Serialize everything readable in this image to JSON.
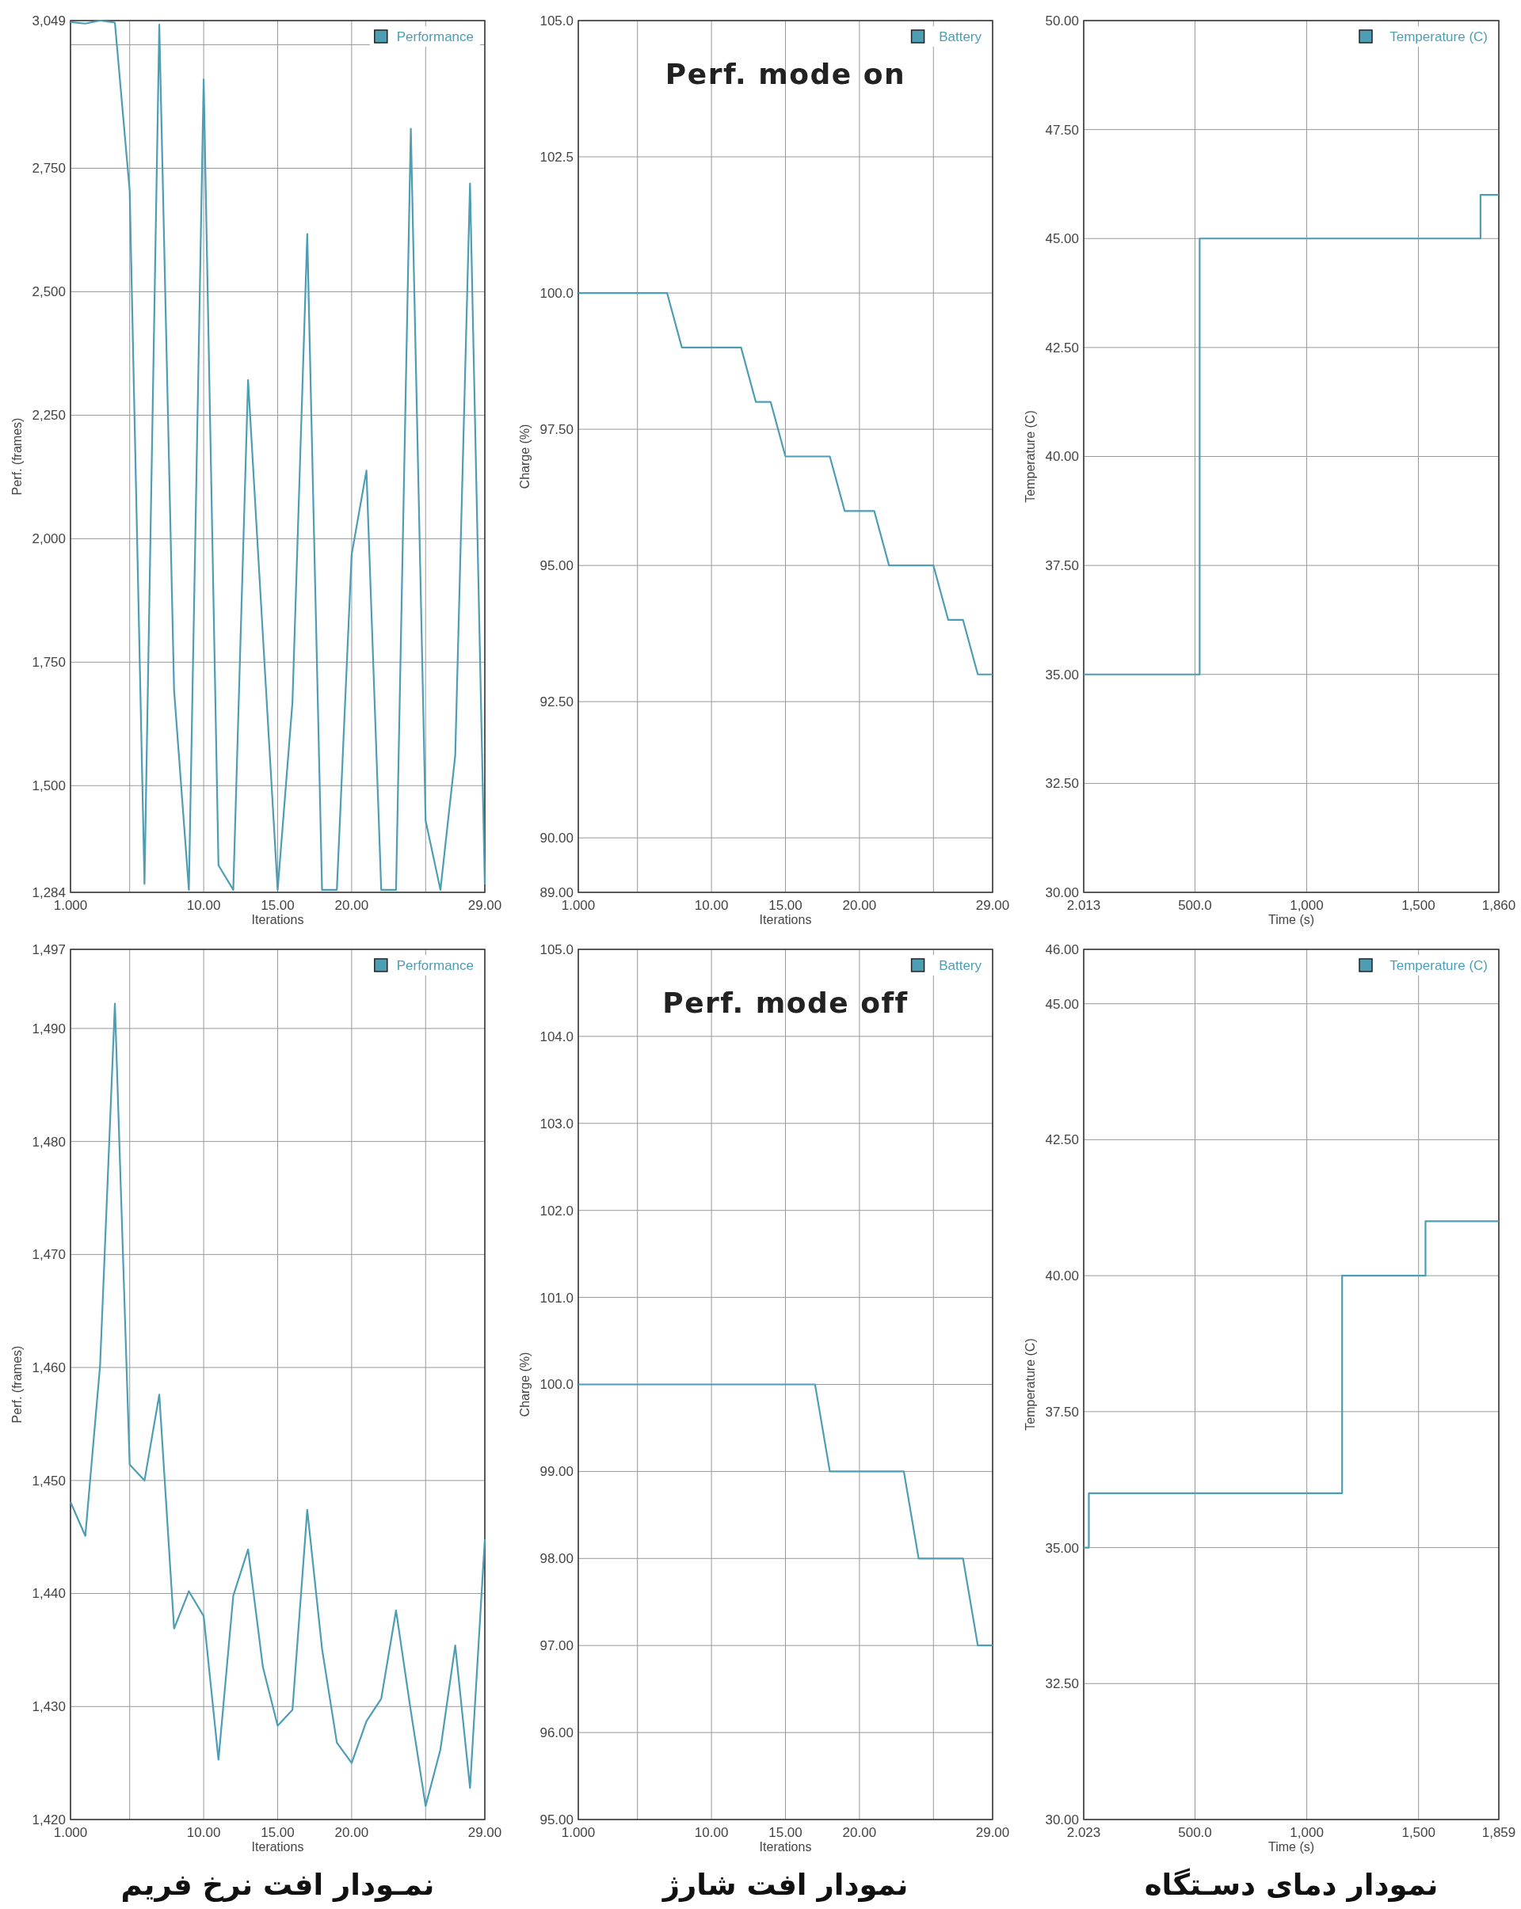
{
  "chart_data": [
    {
      "type": "line",
      "xlabel": "Iterations",
      "ylabel": "Perf. (frames)",
      "x": [
        1,
        2,
        3,
        4,
        5,
        6,
        7,
        8,
        9,
        10,
        11,
        12,
        13,
        14,
        15,
        16,
        17,
        18,
        19,
        20,
        21,
        22,
        23,
        24,
        25,
        26,
        27,
        28,
        29
      ],
      "series": [
        {
          "name": "Performance",
          "color": "#4d9db5",
          "values": [
            3046,
            3043,
            3049,
            3045,
            2704,
            1301,
            3041,
            1693,
            1289,
            2930,
            1339,
            1289,
            2321,
            1805,
            1289,
            1669,
            2617,
            1289,
            1289,
            1968,
            2138,
            1289,
            1289,
            2830,
            1429,
            1289,
            1561,
            2719,
            1300
          ]
        }
      ],
      "xlim": [
        1,
        29
      ],
      "xticks": [
        {
          "value": 1,
          "label": "1.000"
        },
        {
          "value": 5,
          "label": null
        },
        {
          "value": 10,
          "label": "10.00"
        },
        {
          "value": 15,
          "label": "15.00"
        },
        {
          "value": 20,
          "label": "20.00"
        },
        {
          "value": 25,
          "label": null
        },
        {
          "value": 29,
          "label": "29.00"
        }
      ],
      "ylim": [
        1284,
        3049
      ],
      "yticks": [
        {
          "value": 1284,
          "label": "1,284"
        },
        {
          "value": 1500,
          "label": "1,500"
        },
        {
          "value": 1750,
          "label": "1,750"
        },
        {
          "value": 2000,
          "label": "2,000"
        },
        {
          "value": 2250,
          "label": "2,250"
        },
        {
          "value": 2500,
          "label": "2,500"
        },
        {
          "value": 2750,
          "label": "2,750"
        },
        {
          "value": 3000,
          "label": null
        },
        {
          "value": 3049,
          "label": "3,049"
        }
      ],
      "grid": true,
      "legend": "top right"
    },
    {
      "type": "line",
      "title": "Perf. mode on",
      "xlabel": "Iterations",
      "ylabel": "Charge (%)",
      "x": [
        1,
        2,
        3,
        4,
        5,
        6,
        7,
        8,
        9,
        10,
        11,
        12,
        13,
        14,
        15,
        16,
        17,
        18,
        19,
        20,
        21,
        22,
        23,
        24,
        25,
        26,
        27,
        28,
        29
      ],
      "series": [
        {
          "name": "Battery",
          "color": "#4d9db5",
          "values": [
            100,
            100,
            100,
            100,
            100,
            100,
            100,
            99,
            99,
            99,
            99,
            99,
            98,
            98,
            97,
            97,
            97,
            97,
            96,
            96,
            96,
            95,
            95,
            95,
            95,
            94,
            94,
            93,
            93
          ]
        }
      ],
      "xlim": [
        1,
        29
      ],
      "xticks": [
        {
          "value": 1,
          "label": "1.000"
        },
        {
          "value": 5,
          "label": null
        },
        {
          "value": 10,
          "label": "10.00"
        },
        {
          "value": 15,
          "label": "15.00"
        },
        {
          "value": 20,
          "label": "20.00"
        },
        {
          "value": 25,
          "label": null
        },
        {
          "value": 29,
          "label": "29.00"
        }
      ],
      "ylim": [
        89,
        105
      ],
      "yticks": [
        {
          "value": 89,
          "label": "89.00"
        },
        {
          "value": 90,
          "label": "90.00"
        },
        {
          "value": 92.5,
          "label": "92.50"
        },
        {
          "value": 95,
          "label": "95.00"
        },
        {
          "value": 97.5,
          "label": "97.50"
        },
        {
          "value": 100,
          "label": "100.0"
        },
        {
          "value": 102.5,
          "label": "102.5"
        },
        {
          "value": 105,
          "label": "105.0"
        }
      ],
      "grid": true,
      "legend": "top right"
    },
    {
      "type": "step",
      "xlabel": "Time (s)",
      "ylabel": "Temperature (C)",
      "x": [
        2.013,
        521,
        1778,
        1860
      ],
      "series": [
        {
          "name": "Temperature (C)",
          "color": "#4d9db5",
          "values": [
            35,
            45,
            46,
            46
          ]
        }
      ],
      "xlim": [
        2.013,
        1860
      ],
      "xticks": [
        {
          "value": 2.013,
          "label": "2.013"
        },
        {
          "value": 500,
          "label": "500.0"
        },
        {
          "value": 1000,
          "label": "1,000"
        },
        {
          "value": 1500,
          "label": "1,500"
        },
        {
          "value": 1860,
          "label": "1,860"
        }
      ],
      "ylim": [
        30,
        50
      ],
      "yticks": [
        {
          "value": 30,
          "label": "30.00"
        },
        {
          "value": 32.5,
          "label": "32.50"
        },
        {
          "value": 35,
          "label": "35.00"
        },
        {
          "value": 37.5,
          "label": "37.50"
        },
        {
          "value": 40,
          "label": "40.00"
        },
        {
          "value": 42.5,
          "label": "42.50"
        },
        {
          "value": 45,
          "label": "45.00"
        },
        {
          "value": 47.5,
          "label": "47.50"
        },
        {
          "value": 50,
          "label": "50.00"
        }
      ],
      "grid": true,
      "legend": "top right"
    },
    {
      "type": "line",
      "xlabel": "Iterations",
      "ylabel": "Perf. (frames)",
      "annotations": [
        "نمـودار افت نرخ فریم"
      ],
      "x": [
        1,
        2,
        3,
        4,
        5,
        6,
        7,
        8,
        9,
        10,
        11,
        12,
        13,
        14,
        15,
        16,
        17,
        18,
        19,
        20,
        21,
        22,
        23,
        24,
        25,
        26,
        27,
        28,
        29
      ],
      "series": [
        {
          "name": "Performance",
          "color": "#4d9db5",
          "values": [
            1448.1,
            1445.1,
            1460.2,
            1492.2,
            1451.4,
            1450.0,
            1457.6,
            1436.9,
            1440.2,
            1438.0,
            1425.3,
            1439.8,
            1443.9,
            1433.5,
            1428.3,
            1429.7,
            1447.4,
            1435.1,
            1426.8,
            1425.0,
            1428.7,
            1430.7,
            1438.5,
            1429.6,
            1421.2,
            1426.2,
            1435.4,
            1422.8,
            1444.8
          ]
        }
      ],
      "xlim": [
        1,
        29
      ],
      "xticks": [
        {
          "value": 1,
          "label": "1.000"
        },
        {
          "value": 5,
          "label": null
        },
        {
          "value": 10,
          "label": "10.00"
        },
        {
          "value": 15,
          "label": "15.00"
        },
        {
          "value": 20,
          "label": "20.00"
        },
        {
          "value": 25,
          "label": null
        },
        {
          "value": 29,
          "label": "29.00"
        }
      ],
      "ylim": [
        1420,
        1497
      ],
      "yticks": [
        {
          "value": 1420,
          "label": "1,420"
        },
        {
          "value": 1430,
          "label": "1,430"
        },
        {
          "value": 1440,
          "label": "1,440"
        },
        {
          "value": 1450,
          "label": "1,450"
        },
        {
          "value": 1460,
          "label": "1,460"
        },
        {
          "value": 1470,
          "label": "1,470"
        },
        {
          "value": 1480,
          "label": "1,480"
        },
        {
          "value": 1490,
          "label": "1,490"
        },
        {
          "value": 1497,
          "label": "1,497"
        }
      ],
      "grid": true,
      "legend": "top right"
    },
    {
      "type": "line",
      "title": "Perf. mode off",
      "xlabel": "Iterations",
      "ylabel": "Charge (%)",
      "annotations": [
        "نمودار افت  شارژ"
      ],
      "x": [
        1,
        2,
        3,
        4,
        5,
        6,
        7,
        8,
        9,
        10,
        11,
        12,
        13,
        14,
        15,
        16,
        17,
        18,
        19,
        20,
        21,
        22,
        23,
        24,
        25,
        26,
        27,
        28,
        29
      ],
      "series": [
        {
          "name": "Battery",
          "color": "#4d9db5",
          "values": [
            100,
            100,
            100,
            100,
            100,
            100,
            100,
            100,
            100,
            100,
            100,
            100,
            100,
            100,
            100,
            100,
            100,
            99,
            99,
            99,
            99,
            99,
            99,
            98,
            98,
            98,
            98,
            97,
            97
          ]
        }
      ],
      "xlim": [
        1,
        29
      ],
      "xticks": [
        {
          "value": 1,
          "label": "1.000"
        },
        {
          "value": 5,
          "label": null
        },
        {
          "value": 10,
          "label": "10.00"
        },
        {
          "value": 15,
          "label": "15.00"
        },
        {
          "value": 20,
          "label": "20.00"
        },
        {
          "value": 25,
          "label": null
        },
        {
          "value": 29,
          "label": "29.00"
        }
      ],
      "ylim": [
        95,
        105
      ],
      "yticks": [
        {
          "value": 95,
          "label": "95.00"
        },
        {
          "value": 96,
          "label": "96.00"
        },
        {
          "value": 97,
          "label": "97.00"
        },
        {
          "value": 98,
          "label": "98.00"
        },
        {
          "value": 99,
          "label": "99.00"
        },
        {
          "value": 100,
          "label": "100.0"
        },
        {
          "value": 101,
          "label": "101.0"
        },
        {
          "value": 102,
          "label": "102.0"
        },
        {
          "value": 103,
          "label": "103.0"
        },
        {
          "value": 104,
          "label": "104.0"
        },
        {
          "value": 105,
          "label": "105.0"
        }
      ],
      "grid": true,
      "legend": "top right"
    },
    {
      "type": "step",
      "xlabel": "Time (s)",
      "ylabel": "Temperature (C)",
      "annotations": [
        "نمودار دمای دسـتگاه"
      ],
      "x": [
        2.023,
        25,
        1158,
        1531,
        1859
      ],
      "series": [
        {
          "name": "Temperature (C)",
          "color": "#4d9db5",
          "values": [
            35,
            36,
            40,
            41,
            41
          ]
        }
      ],
      "xlim": [
        2.023,
        1859
      ],
      "xticks": [
        {
          "value": 2.023,
          "label": "2.023"
        },
        {
          "value": 500,
          "label": "500.0"
        },
        {
          "value": 1000,
          "label": "1,000"
        },
        {
          "value": 1500,
          "label": "1,500"
        },
        {
          "value": 1859,
          "label": "1,859"
        }
      ],
      "ylim": [
        30,
        46
      ],
      "yticks": [
        {
          "value": 30,
          "label": "30.00"
        },
        {
          "value": 32.5,
          "label": "32.50"
        },
        {
          "value": 35,
          "label": "35.00"
        },
        {
          "value": 37.5,
          "label": "37.50"
        },
        {
          "value": 40,
          "label": "40.00"
        },
        {
          "value": 42.5,
          "label": "42.50"
        },
        {
          "value": 45,
          "label": "45.00"
        },
        {
          "value": 46,
          "label": "46.00"
        }
      ],
      "grid": true,
      "legend": "top right"
    }
  ]
}
